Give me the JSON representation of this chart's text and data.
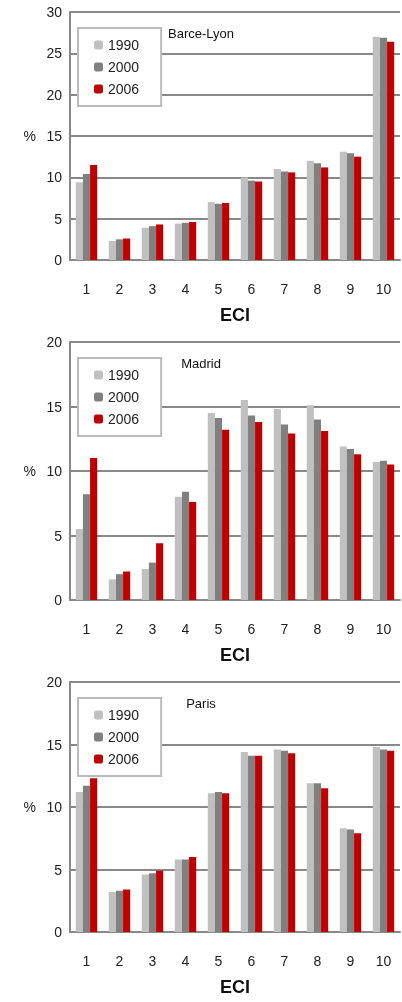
{
  "chart_data": [
    {
      "type": "bar",
      "title": "Barce-Lyon",
      "xlabel": "ECI",
      "ylabel": "%",
      "categories": [
        "1",
        "2",
        "3",
        "4",
        "5",
        "6",
        "7",
        "8",
        "9",
        "10"
      ],
      "ylim": [
        0,
        30
      ],
      "yticks": [
        0,
        5,
        10,
        15,
        20,
        25,
        30
      ],
      "grid": "y",
      "legend": "top left",
      "series": [
        {
          "name": "1990",
          "color": "#c0c0c0",
          "values": [
            9.4,
            2.3,
            3.9,
            4.4,
            7.0,
            10.0,
            11.0,
            12.0,
            13.1,
            27.0
          ]
        },
        {
          "name": "2000",
          "color": "#808080",
          "values": [
            10.4,
            2.5,
            4.1,
            4.5,
            6.8,
            9.6,
            10.7,
            11.7,
            12.9,
            26.9
          ]
        },
        {
          "name": "2006",
          "color": "#c00000",
          "values": [
            11.5,
            2.6,
            4.3,
            4.6,
            6.9,
            9.5,
            10.6,
            11.2,
            12.5,
            26.4
          ]
        }
      ]
    },
    {
      "type": "bar",
      "title": "Madrid",
      "xlabel": "ECI",
      "ylabel": "%",
      "categories": [
        "1",
        "2",
        "3",
        "4",
        "5",
        "6",
        "7",
        "8",
        "9",
        "10"
      ],
      "ylim": [
        0,
        20
      ],
      "yticks": [
        0,
        5,
        10,
        15,
        20
      ],
      "grid": "y",
      "legend": "top left",
      "series": [
        {
          "name": "1990",
          "color": "#c0c0c0",
          "values": [
            5.5,
            1.6,
            2.4,
            8.0,
            14.5,
            15.5,
            14.8,
            15.1,
            11.9,
            10.7
          ]
        },
        {
          "name": "2000",
          "color": "#808080",
          "values": [
            8.2,
            2.0,
            2.9,
            8.4,
            14.1,
            14.3,
            13.6,
            14.0,
            11.7,
            10.8
          ]
        },
        {
          "name": "2006",
          "color": "#c00000",
          "values": [
            11.0,
            2.2,
            4.4,
            7.6,
            13.2,
            13.8,
            12.9,
            13.1,
            11.3,
            10.5
          ]
        }
      ]
    },
    {
      "type": "bar",
      "title": "Paris",
      "xlabel": "ECI",
      "ylabel": "%",
      "categories": [
        "1",
        "2",
        "3",
        "4",
        "5",
        "6",
        "7",
        "8",
        "9",
        "10"
      ],
      "ylim": [
        0,
        20
      ],
      "yticks": [
        0,
        5,
        10,
        15,
        20
      ],
      "grid": "y",
      "legend": "top left",
      "series": [
        {
          "name": "1990",
          "color": "#c0c0c0",
          "values": [
            11.2,
            3.2,
            4.6,
            5.8,
            11.1,
            14.4,
            14.6,
            11.9,
            8.3,
            14.8
          ]
        },
        {
          "name": "2000",
          "color": "#808080",
          "values": [
            11.7,
            3.3,
            4.7,
            5.8,
            11.2,
            14.1,
            14.5,
            11.9,
            8.2,
            14.6
          ]
        },
        {
          "name": "2006",
          "color": "#c00000",
          "values": [
            12.3,
            3.4,
            4.9,
            6.0,
            11.1,
            14.1,
            14.3,
            11.5,
            7.9,
            14.5
          ]
        }
      ]
    }
  ]
}
